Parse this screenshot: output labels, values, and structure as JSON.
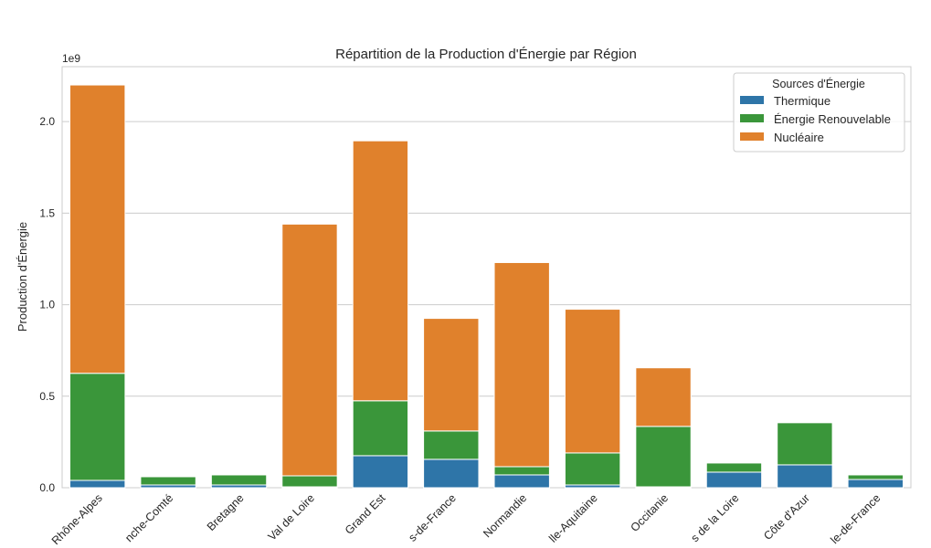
{
  "chart_data": {
    "type": "bar",
    "stacked": true,
    "title": "Répartition de la Production d'Énergie par Région",
    "xlabel": "",
    "ylabel": "Production d'Énergie",
    "scale_label": "1e9",
    "ylim": [
      0,
      2.3
    ],
    "yticks": [
      "0.0",
      "0.5",
      "1.0",
      "1.5",
      "2.0"
    ],
    "grid": true,
    "legend_position": "top-right",
    "legend_title": "Sources d'Énergie",
    "categories": [
      "Rhône-Alpes",
      "nche-Comté",
      "Bretagne",
      "Val de Loire",
      "Grand Est",
      "s-de-France",
      "Normandie",
      "lle-Aquitaine",
      "Occitanie",
      "s de la Loire",
      "Côte d'Azur",
      "le-de-France"
    ],
    "series": [
      {
        "name": "Thermique",
        "color": "#2e75a8",
        "values": [
          0.04,
          0.015,
          0.015,
          0.005,
          0.175,
          0.155,
          0.07,
          0.015,
          0.005,
          0.085,
          0.125,
          0.045
        ]
      },
      {
        "name": "Énergie Renouvelable",
        "color": "#3a963a",
        "values": [
          0.585,
          0.045,
          0.055,
          0.06,
          0.3,
          0.155,
          0.045,
          0.175,
          0.33,
          0.05,
          0.23,
          0.025
        ]
      },
      {
        "name": "Nucléaire",
        "color": "#e0812c",
        "values": [
          1.575,
          0.0,
          0.0,
          1.375,
          1.42,
          0.615,
          1.115,
          0.785,
          0.32,
          0.0,
          0.0,
          0.0
        ]
      }
    ]
  }
}
